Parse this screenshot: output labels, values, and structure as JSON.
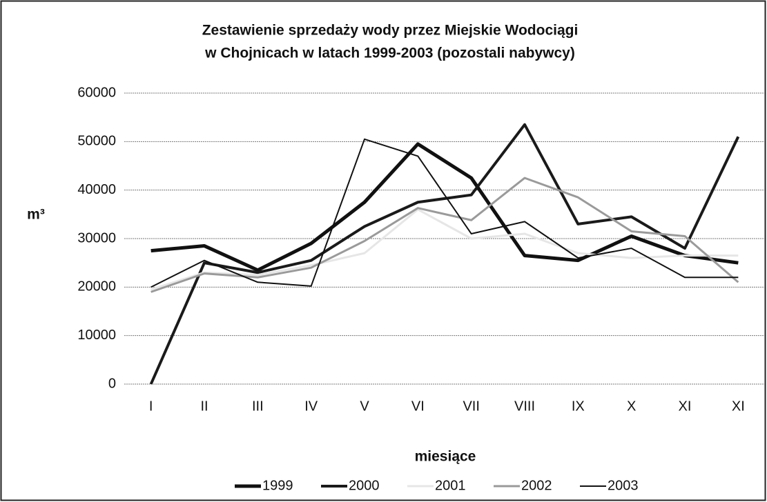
{
  "chart_data": {
    "type": "line",
    "title_lines": [
      "Zestawienie sprzedaży wody przez Miejskie Wodociągi",
      "w Chojnicach w latach 1999-2003 (pozostali nabywcy)"
    ],
    "x_label": "miesiące",
    "y_label": "m³",
    "categories": [
      "I",
      "II",
      "III",
      "IV",
      "V",
      "VI",
      "VII",
      "VIII",
      "IX",
      "X",
      "XI",
      "XI"
    ],
    "series": [
      {
        "name": "1999",
        "color": "#111111",
        "width": 5,
        "values": [
          27500,
          28500,
          23500,
          29000,
          37500,
          49500,
          42500,
          26500,
          25500,
          30500,
          26500,
          25000
        ]
      },
      {
        "name": "2000",
        "color": "#1a1a1a",
        "width": 4,
        "values": [
          0,
          25000,
          23000,
          25500,
          32500,
          37500,
          39000,
          53500,
          33000,
          34500,
          28000,
          51000
        ]
      },
      {
        "name": "2001",
        "color": "#e6e6e6",
        "width": 3,
        "values": [
          19500,
          23000,
          22500,
          24500,
          27000,
          36000,
          30000,
          31000,
          27000,
          26000,
          26500,
          26500
        ]
      },
      {
        "name": "2002",
        "color": "#9a9a9a",
        "width": 3,
        "values": [
          19000,
          22800,
          22000,
          24000,
          29500,
          36300,
          33800,
          42500,
          38500,
          31500,
          30500,
          21000
        ]
      },
      {
        "name": "2003",
        "color": "#111111",
        "width": 2,
        "values": [
          20000,
          25500,
          21000,
          20200,
          50500,
          47000,
          31000,
          33500,
          26000,
          28000,
          22000,
          22000
        ]
      }
    ],
    "ylim": [
      0,
      60000
    ],
    "yticks": [
      0,
      10000,
      20000,
      30000,
      40000,
      50000,
      60000
    ],
    "grid": true,
    "legend": "bottom"
  }
}
